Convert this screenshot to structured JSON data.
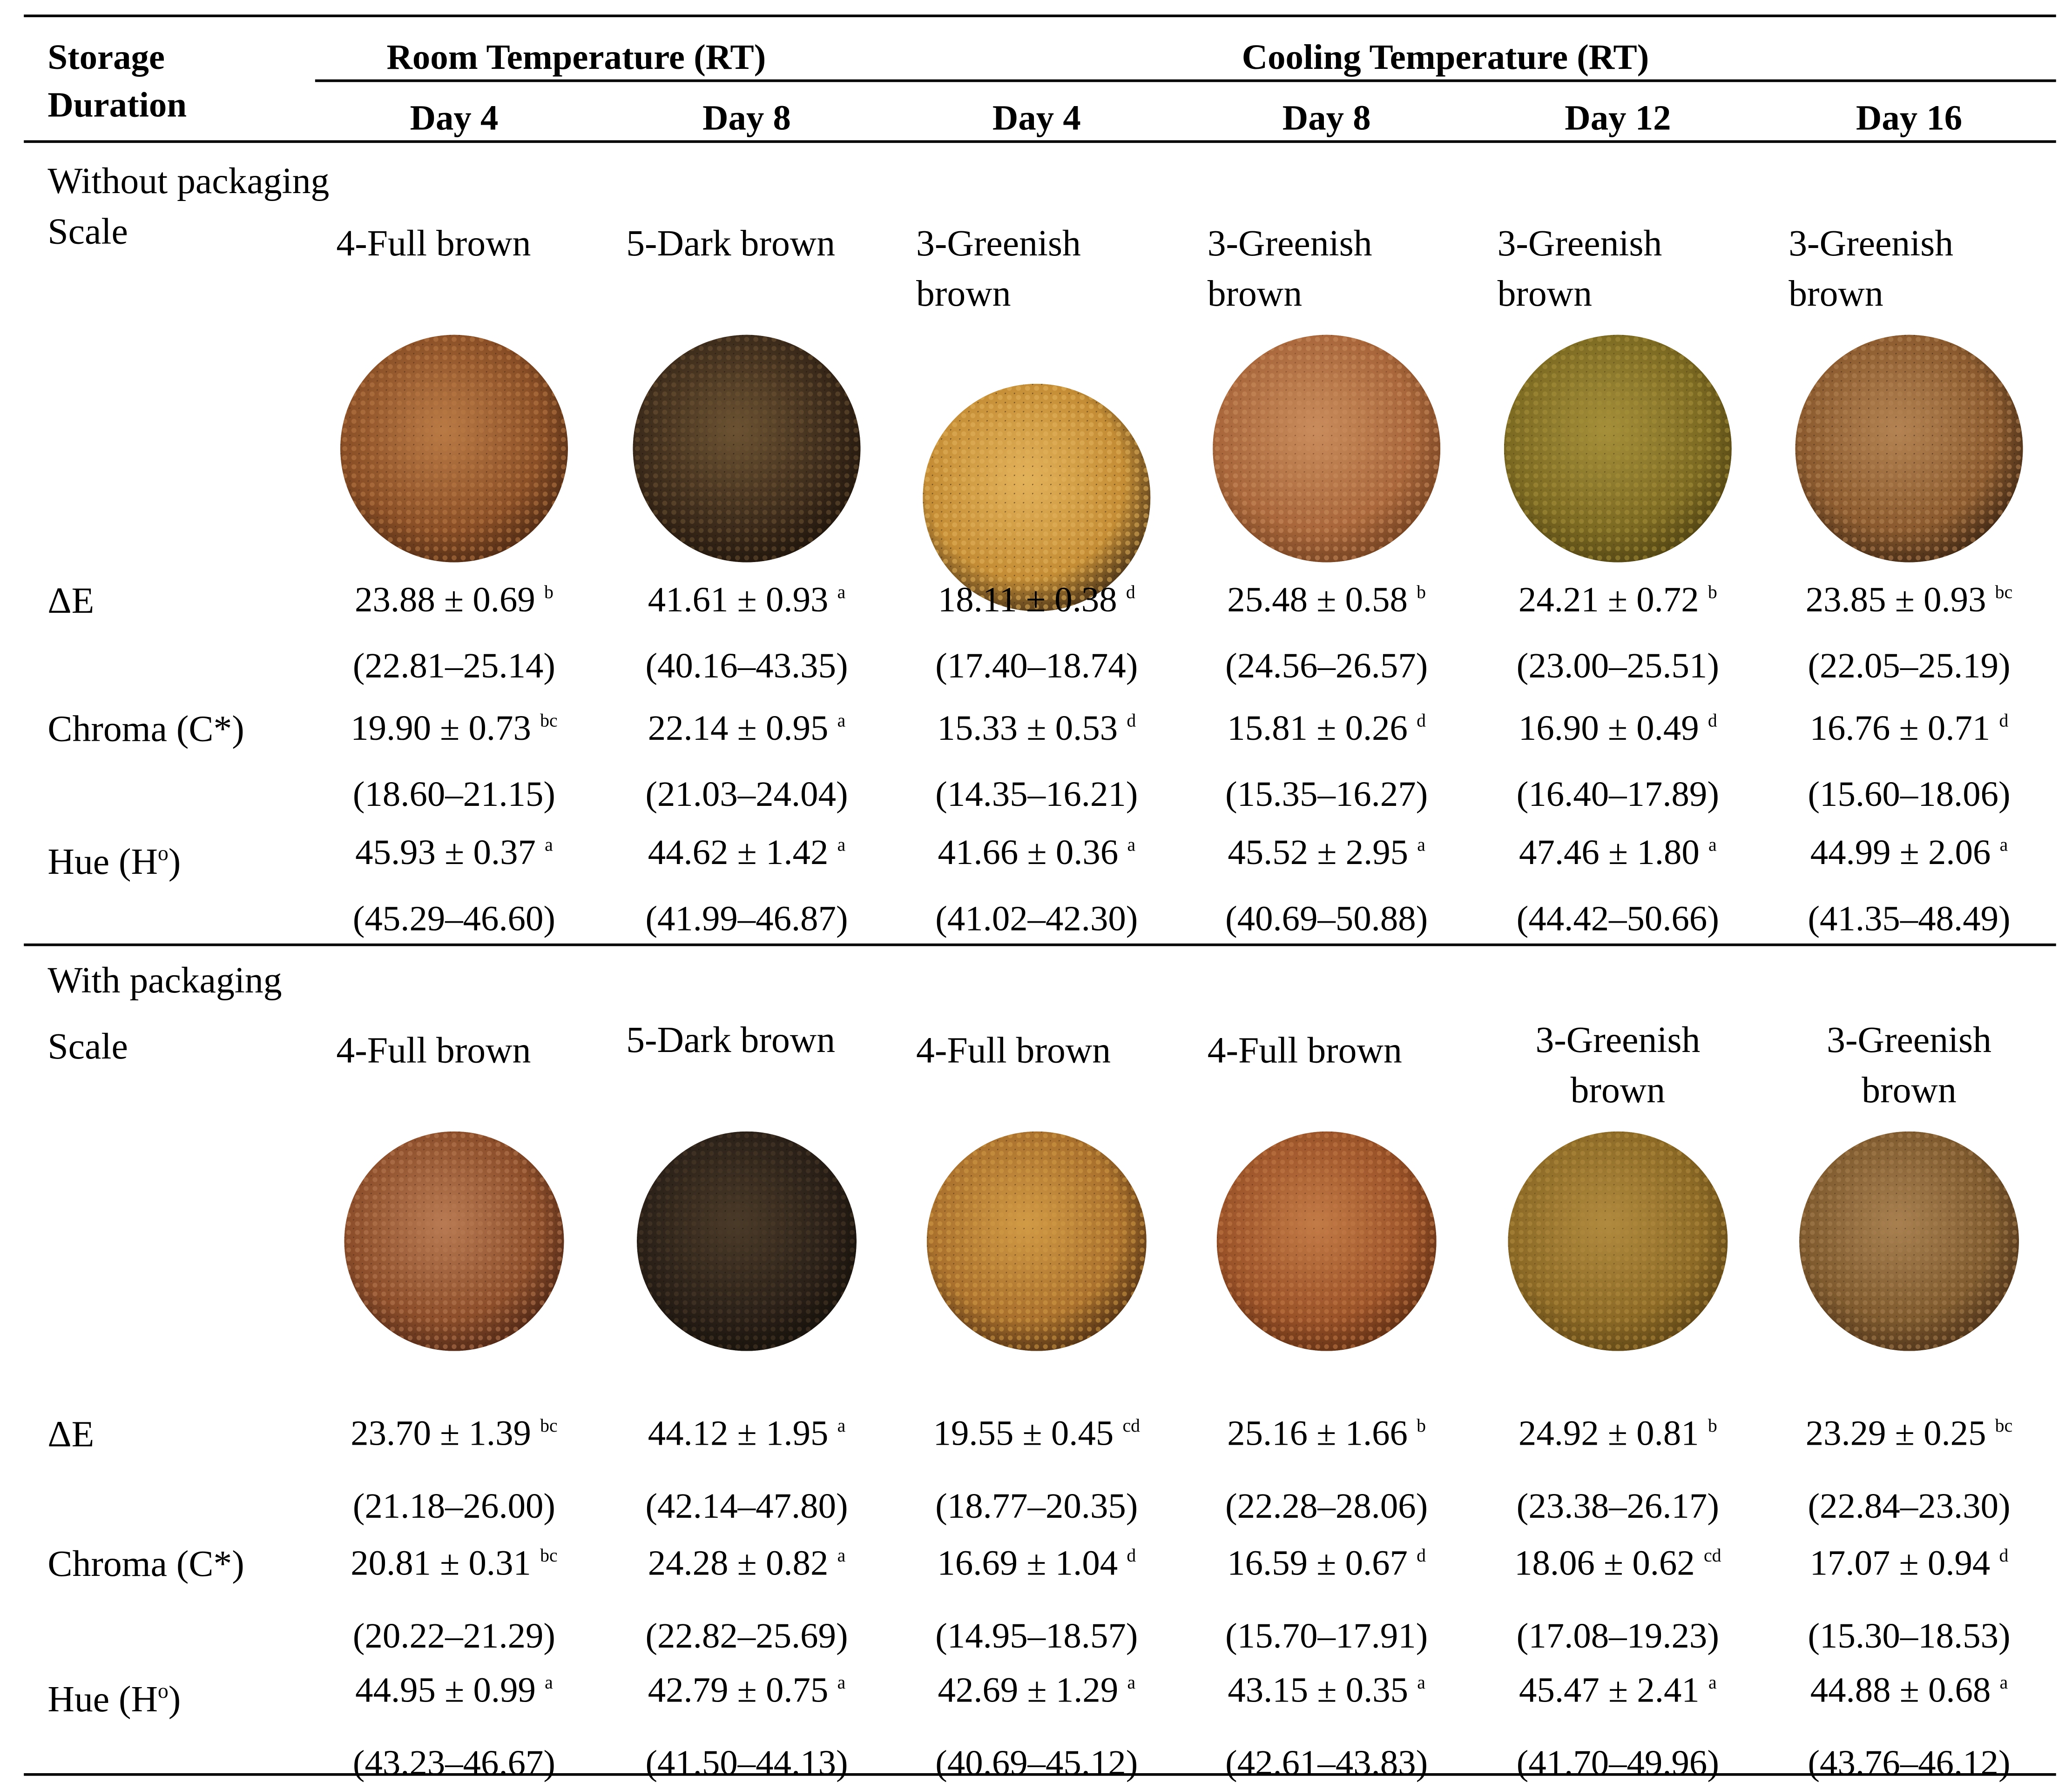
{
  "header": {
    "storage_duration": [
      "Storage",
      "Duration"
    ],
    "room_temperature": "Room Temperature (RT)",
    "cooling_temperature": "Cooling Temperature (RT)",
    "days": [
      "Day 4",
      "Day 8",
      "Day 4",
      "Day 8",
      "Day 12",
      "Day 16"
    ]
  },
  "without": {
    "section_label": "Without packaging",
    "scale_label": "Scale",
    "scale": [
      [
        "4-Full brown"
      ],
      [
        "5-Dark brown"
      ],
      [
        "3-Greenish",
        "brown"
      ],
      [
        "3-Greenish",
        "brown"
      ],
      [
        "3-Greenish",
        "brown"
      ],
      [
        "3-Greenish",
        "brown"
      ]
    ],
    "swatch_colors": [
      [
        "#8a4f26",
        "#b97a45",
        "#4a2813"
      ],
      [
        "#3b2a1a",
        "#6b5232",
        "#1e140b"
      ],
      [
        "#c48d35",
        "#e2b25a",
        "#3d2a15"
      ],
      [
        "#a8663a",
        "#c98c5c",
        "#6f3f1f"
      ],
      [
        "#7c6a22",
        "#a58f3a",
        "#4e4112"
      ],
      [
        "#8a5a2e",
        "#b48353",
        "#3a2412"
      ]
    ],
    "rows": [
      {
        "label": "ΔE",
        "values": [
          [
            "23.88 ± 0.69",
            "b"
          ],
          [
            "41.61 ± 0.93",
            "a"
          ],
          [
            "18.11 ± 0.38",
            "d"
          ],
          [
            "25.48 ± 0.58",
            "b"
          ],
          [
            "24.21 ± 0.72",
            "b"
          ],
          [
            "23.85 ± 0.93",
            "bc"
          ]
        ],
        "ranges": [
          "(22.81–25.14)",
          "(40.16–43.35)",
          "(17.40–18.74)",
          "(24.56–26.57)",
          "(23.00–25.51)",
          "(22.05–25.19)"
        ]
      },
      {
        "label": "Chroma (C*)",
        "values": [
          [
            "19.90 ± 0.73",
            "bc"
          ],
          [
            "22.14 ± 0.95",
            "a"
          ],
          [
            "15.33 ± 0.53",
            "d"
          ],
          [
            "15.81 ± 0.26",
            "d"
          ],
          [
            "16.90 ± 0.49",
            "d"
          ],
          [
            "16.76 ± 0.71",
            "d"
          ]
        ],
        "ranges": [
          "(18.60–21.15)",
          "(21.03–24.04)",
          "(14.35–16.21)",
          "(15.35–16.27)",
          "(16.40–17.89)",
          "(15.60–18.06)"
        ]
      },
      {
        "label": [
          "Hue (H",
          "o",
          ")"
        ],
        "values": [
          [
            "45.93 ± 0.37",
            "a"
          ],
          [
            "44.62 ± 1.42",
            "a"
          ],
          [
            "41.66 ± 0.36",
            "a"
          ],
          [
            "45.52 ± 2.95",
            "a"
          ],
          [
            "47.46 ± 1.80",
            "a"
          ],
          [
            "44.99 ± 2.06",
            "a"
          ]
        ],
        "ranges": [
          "(45.29–46.60)",
          "(41.99–46.87)",
          "(41.02–42.30)",
          "(40.69–50.88)",
          "(44.42–50.66)",
          "(41.35–48.49)"
        ]
      }
    ]
  },
  "with": {
    "section_label": "With packaging",
    "scale_label": "Scale",
    "scale": [
      [
        "4-Full brown"
      ],
      [
        "5-Dark brown"
      ],
      [
        "4-Full brown"
      ],
      [
        "4-Full brown"
      ],
      [
        "3-Greenish",
        "brown"
      ],
      [
        "3-Greenish",
        "brown"
      ]
    ],
    "swatch_colors": [
      [
        "#8c4e2a",
        "#b87a52",
        "#4a2414"
      ],
      [
        "#2a2018",
        "#4a3a28",
        "#14100a"
      ],
      [
        "#a8702c",
        "#d19a45",
        "#4a2c12"
      ],
      [
        "#9a5228",
        "#c27a46",
        "#5a2c12"
      ],
      [
        "#8c6a26",
        "#b08a3e",
        "#5a4214"
      ],
      [
        "#7e5a2e",
        "#a88050",
        "#4a3018"
      ]
    ],
    "rows": [
      {
        "label": "ΔE",
        "values": [
          [
            "23.70 ± 1.39",
            "bc"
          ],
          [
            "44.12 ± 1.95",
            "a"
          ],
          [
            "19.55 ± 0.45",
            "cd"
          ],
          [
            "25.16 ± 1.66",
            "b"
          ],
          [
            "24.92 ± 0.81",
            "b"
          ],
          [
            "23.29 ± 0.25",
            "bc"
          ]
        ],
        "ranges": [
          "(21.18–26.00)",
          "(42.14–47.80)",
          "(18.77–20.35)",
          "(22.28–28.06)",
          "(23.38–26.17)",
          "(22.84–23.30)"
        ]
      },
      {
        "label": "Chroma (C*)",
        "values": [
          [
            "20.81 ± 0.31",
            "bc"
          ],
          [
            "24.28 ± 0.82",
            "a"
          ],
          [
            "16.69 ± 1.04",
            "d"
          ],
          [
            "16.59 ± 0.67",
            "d"
          ],
          [
            "18.06 ± 0.62",
            "cd"
          ],
          [
            "17.07 ± 0.94",
            "d"
          ]
        ],
        "ranges": [
          "(20.22–21.29)",
          "(22.82–25.69)",
          "(14.95–18.57)",
          "(15.70–17.91)",
          "(17.08–19.23)",
          "(15.30–18.53)"
        ]
      },
      {
        "label": [
          "Hue (H",
          "o",
          ")"
        ],
        "values": [
          [
            "44.95 ± 0.99",
            "a"
          ],
          [
            "42.79 ± 0.75",
            "a"
          ],
          [
            "42.69 ± 1.29",
            "a"
          ],
          [
            "43.15 ± 0.35",
            "a"
          ],
          [
            "45.47 ± 2.41",
            "a"
          ],
          [
            "44.88 ± 0.68",
            "a"
          ]
        ],
        "ranges": [
          "(43.23–46.67)",
          "(41.50–44.13)",
          "(40.69–45.12)",
          "(42.61–43.83)",
          "(41.70–49.96)",
          "(43.76–46.12)"
        ]
      }
    ]
  }
}
